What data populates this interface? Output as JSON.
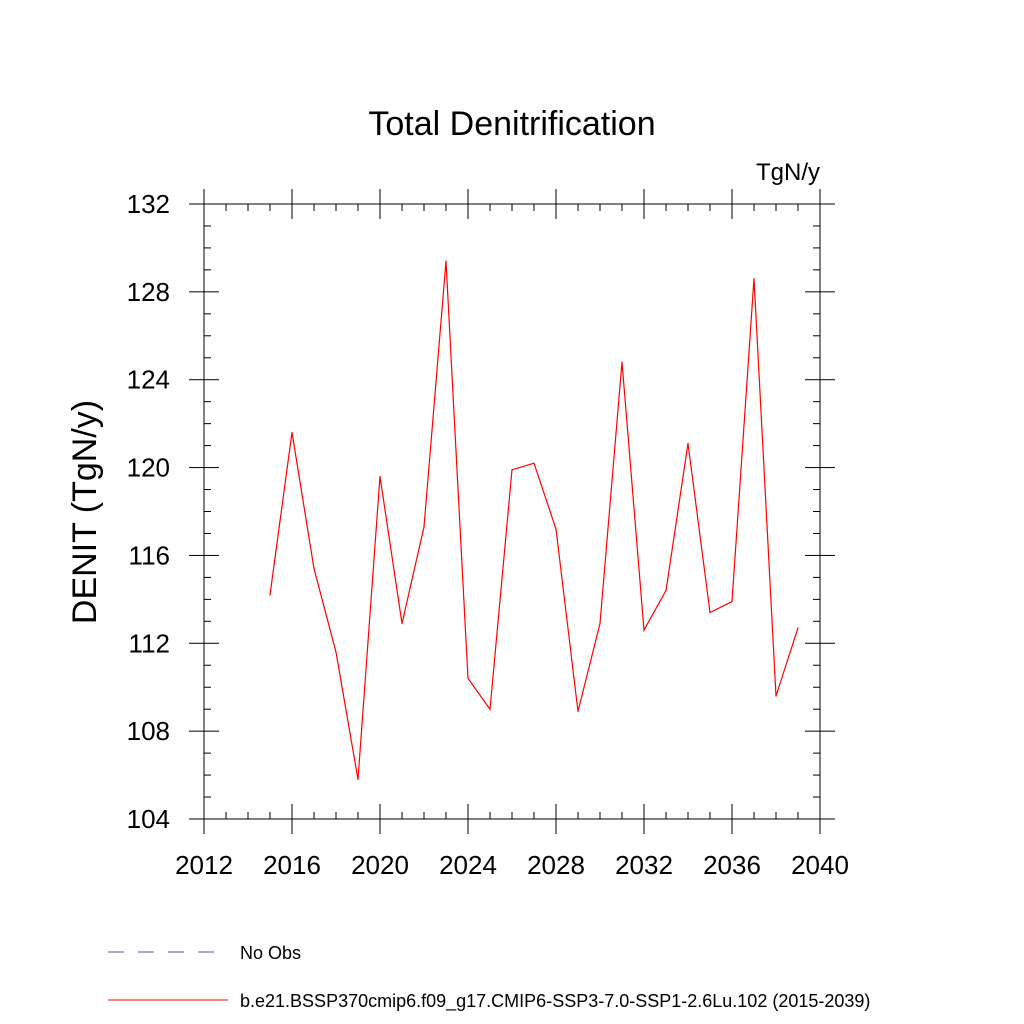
{
  "chart_data": {
    "type": "line",
    "title": "Total Denitrification",
    "units_label": "TgN/y",
    "ylabel": "DENIT  (TgN/y)",
    "xlabel": "",
    "xlim": [
      2012,
      2040
    ],
    "ylim": [
      104,
      132
    ],
    "x_ticks": [
      2012,
      2016,
      2020,
      2024,
      2028,
      2032,
      2036,
      2040
    ],
    "y_ticks": [
      104,
      108,
      112,
      116,
      120,
      124,
      128,
      132
    ],
    "grid": false,
    "legend_position": "bottom",
    "series": [
      {
        "name": "b.e21.BSSP370cmip6.f09_g17.CMIP6-SSP3-7.0-SSP1-2.6Lu.102 (2015-2039)",
        "color": "#ff0000",
        "x": [
          2015,
          2016,
          2017,
          2018,
          2019,
          2020,
          2021,
          2022,
          2023,
          2024,
          2025,
          2026,
          2027,
          2028,
          2029,
          2030,
          2031,
          2032,
          2033,
          2034,
          2035,
          2036,
          2037,
          2038,
          2039
        ],
        "y": [
          114.2,
          121.6,
          115.4,
          111.6,
          105.8,
          119.6,
          112.9,
          117.3,
          129.4,
          110.4,
          109.0,
          119.9,
          120.2,
          117.2,
          108.9,
          112.9,
          124.8,
          112.6,
          114.4,
          121.1,
          113.4,
          113.9,
          128.6,
          109.6,
          112.7
        ]
      }
    ],
    "legend": [
      {
        "label": "No Obs",
        "color": "#5a4fa0",
        "style": "dashed"
      },
      {
        "label": "b.e21.BSSP370cmip6.f09_g17.CMIP6-SSP3-7.0-SSP1-2.6Lu.102 (2015-2039)",
        "color": "#ff0000",
        "style": "solid"
      }
    ]
  }
}
